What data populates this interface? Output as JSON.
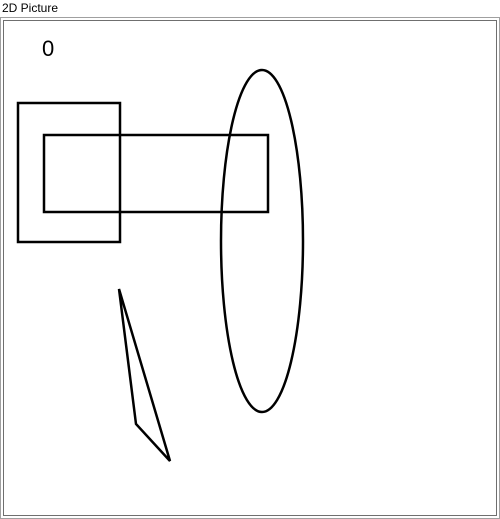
{
  "window": {
    "title": "2D Picture"
  },
  "canvas": {
    "label_text": "0",
    "stroke_color": "#000000",
    "background_color": "#ffffff"
  }
}
